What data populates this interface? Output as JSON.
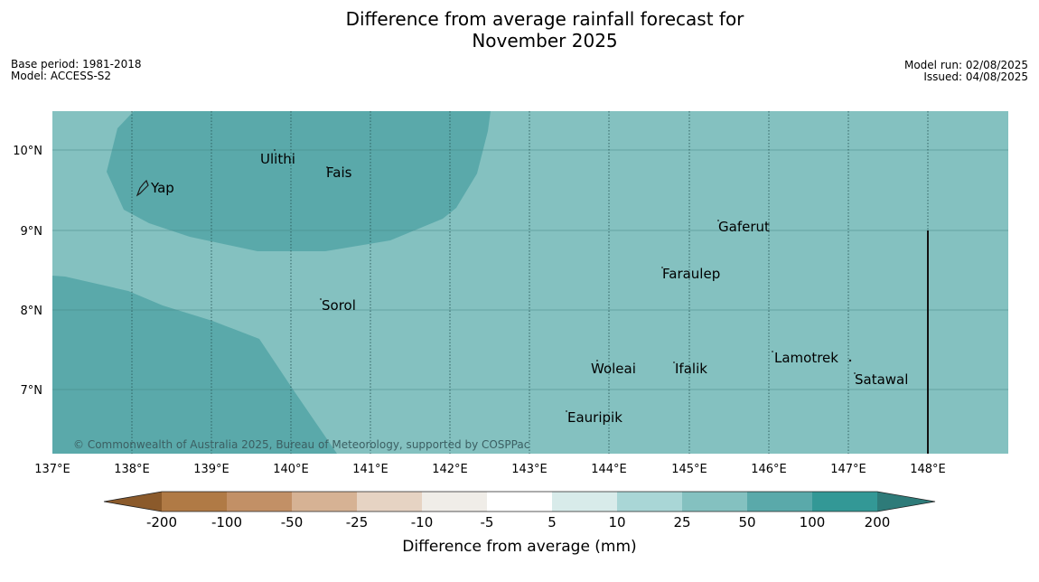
{
  "title_line1": "Difference from average rainfall forecast for",
  "title_line2": "November 2025",
  "meta": {
    "base_period": "Base period: 1981-2018",
    "model": "Model: ACCESS-S2",
    "model_run": "Model run: 02/08/2025",
    "issued": "Issued: 04/08/2025"
  },
  "map": {
    "lon_ticks": [
      "137°E",
      "138°E",
      "139°E",
      "140°E",
      "141°E",
      "142°E",
      "143°E",
      "144°E",
      "145°E",
      "146°E",
      "147°E",
      "148°E"
    ],
    "lat_ticks": [
      "10°N",
      "9°N",
      "8°N",
      "7°N"
    ],
    "places": [
      "Yap",
      "Ulithi",
      "Fais",
      "Gaferut",
      "Faraulep",
      "Sorol",
      "Woleai",
      "Ifalik",
      "Lamotrek",
      "Satawal",
      "Eauripik"
    ],
    "copyright": "© Commonwealth of Australia 2025, Bureau of Meteorology, supported by COSPPac",
    "colors": {
      "band_25_50": "#84c1c0",
      "band_50_100": "#5aa9aa",
      "land": "#1a1a1a"
    }
  },
  "colorbar": {
    "title": "Difference from average (mm)",
    "labels": [
      "-200",
      "-100",
      "-50",
      "-25",
      "-10",
      "-5",
      "5",
      "10",
      "25",
      "50",
      "100",
      "200"
    ],
    "colors": [
      "#8b5a2b",
      "#b07a45",
      "#c29066",
      "#d6b294",
      "#e6d3c3",
      "#f0ede8",
      "#ffffff",
      "#d8ebea",
      "#a9d6d6",
      "#84c1c0",
      "#5aa9aa",
      "#339896",
      "#2e7b79"
    ]
  }
}
